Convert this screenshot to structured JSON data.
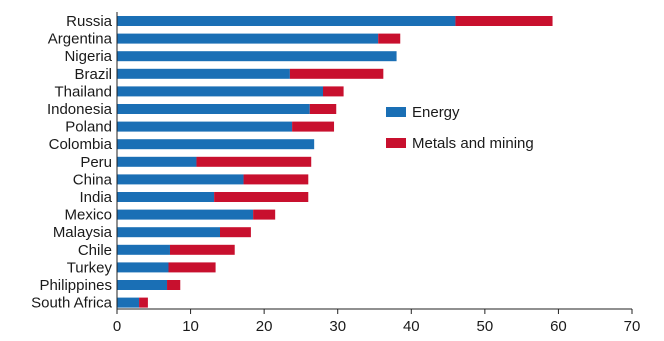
{
  "chart_data": {
    "type": "bar",
    "orientation": "horizontal",
    "stacked": true,
    "categories": [
      "Russia",
      "Argentina",
      "Nigeria",
      "Brazil",
      "Thailand",
      "Indonesia",
      "Poland",
      "Colombia",
      "Peru",
      "China",
      "India",
      "Mexico",
      "Malaysia",
      "Chile",
      "Turkey",
      "Philippines",
      "South Africa"
    ],
    "series": [
      {
        "name": "Energy",
        "color": "#1a6fb5",
        "values": [
          46,
          35.5,
          38,
          23.5,
          28,
          26.2,
          23.8,
          26.8,
          10.8,
          17.2,
          13.2,
          18.5,
          14,
          7.2,
          7,
          6.8,
          3
        ]
      },
      {
        "name": "Metals and mining",
        "color": "#c8102e",
        "values": [
          13.2,
          3,
          0,
          12.7,
          2.8,
          3.6,
          5.7,
          0,
          15.6,
          8.8,
          12.8,
          3,
          4.2,
          8.8,
          6.4,
          1.8,
          1.2
        ]
      }
    ],
    "xlim": [
      0,
      70
    ],
    "xticks": [
      0,
      10,
      20,
      30,
      40,
      50,
      60,
      70
    ],
    "legend_position": "center-right",
    "grid": false
  }
}
